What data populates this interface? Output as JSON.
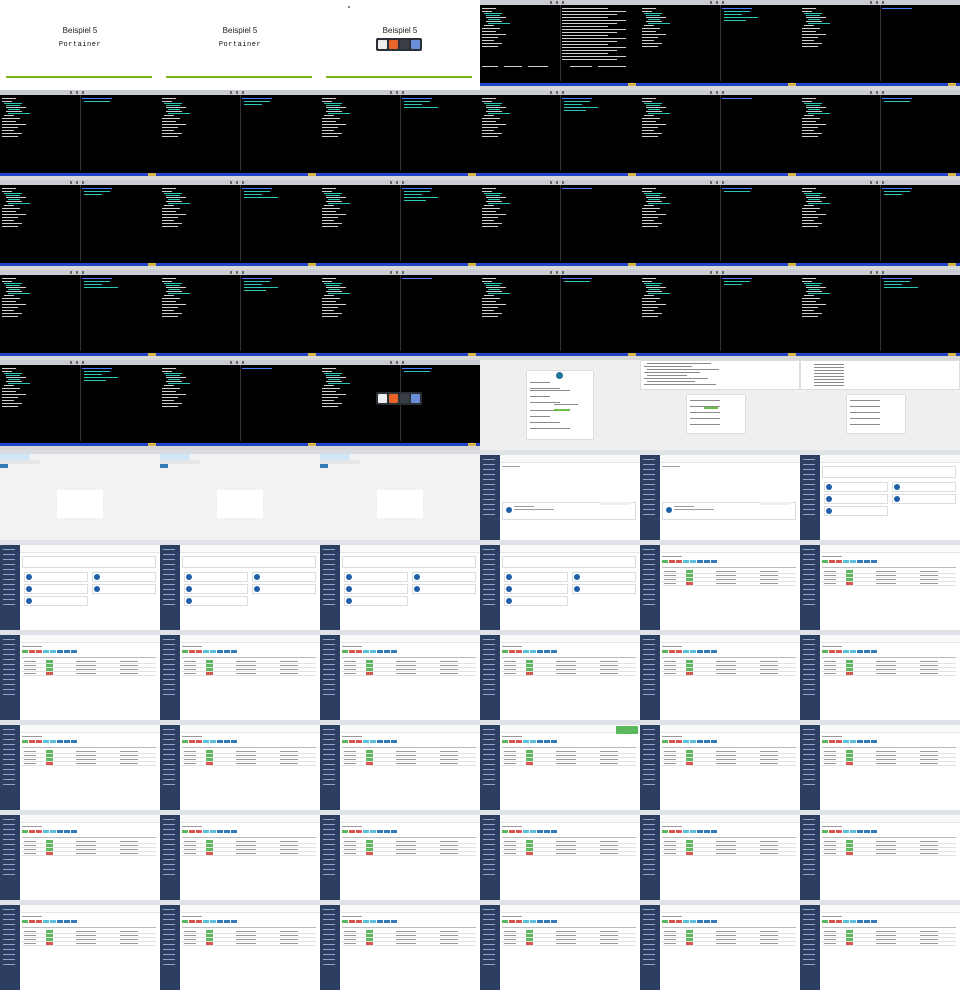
{
  "grid": {
    "columns": 6,
    "rows": 11
  },
  "slides": {
    "title": "Beispiel 5",
    "subtitle": "Portainer",
    "accent_color": "#7bb317"
  },
  "dock_icons": [
    "document-icon",
    "firefox-icon",
    "terminal-icon",
    "files-icon"
  ],
  "terminal_colors": [
    "#cfcfcf",
    "#29c7b5",
    "#4a7bff",
    "#47c05a"
  ],
  "portainer": {
    "brand_color": "#2d3e63",
    "status_running_color": "#5cb85c",
    "status_stopped_color": "#d9534f"
  },
  "frames": [
    {
      "type": "slide"
    },
    {
      "type": "slide"
    },
    {
      "type": "slide",
      "dock": true
    },
    {
      "type": "term",
      "text": "full"
    },
    {
      "type": "term"
    },
    {
      "type": "term"
    },
    {
      "type": "term"
    },
    {
      "type": "term"
    },
    {
      "type": "term"
    },
    {
      "type": "term"
    },
    {
      "type": "term"
    },
    {
      "type": "term"
    },
    {
      "type": "term"
    },
    {
      "type": "term"
    },
    {
      "type": "term"
    },
    {
      "type": "term"
    },
    {
      "type": "term"
    },
    {
      "type": "term"
    },
    {
      "type": "term"
    },
    {
      "type": "term"
    },
    {
      "type": "term"
    },
    {
      "type": "term"
    },
    {
      "type": "term"
    },
    {
      "type": "term"
    },
    {
      "type": "term"
    },
    {
      "type": "term"
    },
    {
      "type": "term",
      "dock": true
    },
    {
      "type": "wp",
      "variant": "install"
    },
    {
      "type": "wp",
      "variant": "dev"
    },
    {
      "type": "wp",
      "variant": "form"
    },
    {
      "type": "login"
    },
    {
      "type": "login"
    },
    {
      "type": "login"
    },
    {
      "type": "app",
      "variant": "home"
    },
    {
      "type": "app",
      "variant": "home"
    },
    {
      "type": "app",
      "variant": "dash"
    },
    {
      "type": "app",
      "variant": "dash"
    },
    {
      "type": "app",
      "variant": "dash"
    },
    {
      "type": "app",
      "variant": "dash"
    },
    {
      "type": "app",
      "variant": "dash"
    },
    {
      "type": "app",
      "variant": "list"
    },
    {
      "type": "app",
      "variant": "list"
    },
    {
      "type": "app",
      "variant": "list"
    },
    {
      "type": "app",
      "variant": "list"
    },
    {
      "type": "app",
      "variant": "list"
    },
    {
      "type": "app",
      "variant": "list"
    },
    {
      "type": "app",
      "variant": "list"
    },
    {
      "type": "app",
      "variant": "list"
    },
    {
      "type": "app",
      "variant": "list"
    },
    {
      "type": "app",
      "variant": "list"
    },
    {
      "type": "app",
      "variant": "list"
    },
    {
      "type": "app",
      "variant": "list",
      "toast": true
    },
    {
      "type": "app",
      "variant": "list"
    },
    {
      "type": "app",
      "variant": "list"
    },
    {
      "type": "app",
      "variant": "list"
    },
    {
      "type": "app",
      "variant": "list"
    },
    {
      "type": "app",
      "variant": "list"
    },
    {
      "type": "app",
      "variant": "list"
    },
    {
      "type": "app",
      "variant": "list"
    },
    {
      "type": "app",
      "variant": "list"
    },
    {
      "type": "app",
      "variant": "list"
    },
    {
      "type": "app",
      "variant": "list"
    },
    {
      "type": "app",
      "variant": "list"
    },
    {
      "type": "app",
      "variant": "list"
    },
    {
      "type": "app",
      "variant": "list"
    },
    {
      "type": "app",
      "variant": "list"
    }
  ]
}
